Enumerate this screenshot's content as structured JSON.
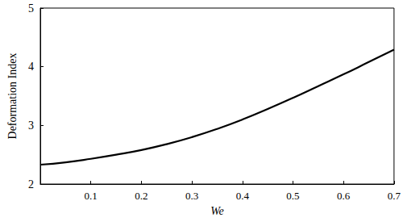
{
  "chart_data": {
    "type": "line",
    "x_label": "We",
    "y_label": "Deformation Index",
    "x": [
      0,
      0.05,
      0.1,
      0.15,
      0.2,
      0.25,
      0.3,
      0.35,
      0.4,
      0.45,
      0.5,
      0.55,
      0.6,
      0.65,
      0.7
    ],
    "values": [
      2.33,
      2.37,
      2.43,
      2.5,
      2.58,
      2.68,
      2.8,
      2.94,
      3.1,
      3.28,
      3.47,
      3.67,
      3.87,
      4.08,
      4.29
    ],
    "color": "#000000",
    "xlim": [
      0,
      0.7
    ],
    "xticks": [
      0.1,
      0.2,
      0.3,
      0.4,
      0.5,
      0.6,
      0.7
    ],
    "ylim": [
      2,
      5
    ],
    "yticks": [
      2,
      3,
      4,
      5
    ],
    "grid": false
  }
}
